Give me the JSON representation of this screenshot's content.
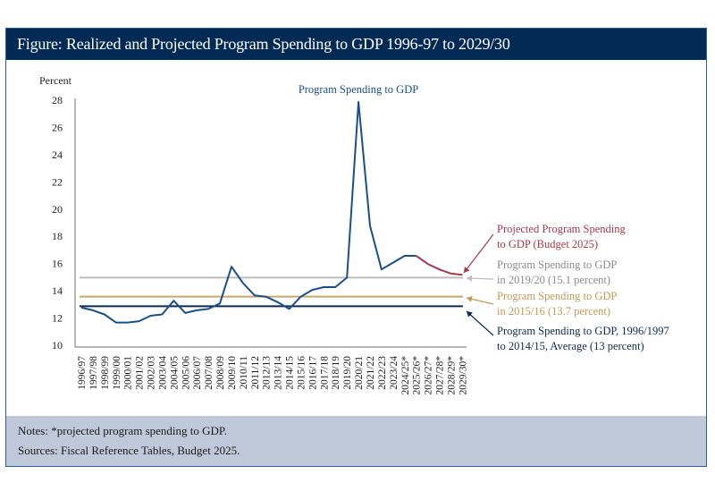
{
  "header": {
    "title": "Figure: Realized and Projected Program Spending to GDP 1996-97 to 2029/30"
  },
  "notes": {
    "note": "Notes: *projected program spending to GDP.",
    "source": "Sources: Fiscal Reference Tables, Budget 2025."
  },
  "colors": {
    "header_bg": "#032a54",
    "series_realized": "#1a4f8a",
    "series_projected": "#a33a4a",
    "ref_2019": "#bdbdbd",
    "ref_2015": "#c9a96a",
    "ref_avg": "#0d2a4f",
    "notes_bg": "#bfc9da"
  },
  "chart_data": {
    "type": "line",
    "title": "Program Spending to GDP",
    "ylabel": "Percent",
    "xlabel": "",
    "ylim": [
      10,
      28
    ],
    "yticks": [
      10,
      12,
      14,
      16,
      18,
      20,
      22,
      24,
      26,
      28
    ],
    "grid": false,
    "categories": [
      "1996/97",
      "1997/98",
      "1998/99",
      "1999/00",
      "2000/01",
      "2001/02",
      "2002/03",
      "2003/04",
      "2004/05",
      "2005/06",
      "2006/07",
      "2007/08",
      "2008/09",
      "2009/10",
      "2010/11",
      "2011/12",
      "2012/13",
      "2013/14",
      "2014/15",
      "2015/16",
      "2016/17",
      "2017/18",
      "2018/19",
      "2019/20",
      "2020/21",
      "2021/22",
      "2022/23",
      "2023/24",
      "2024/25*",
      "2025/26*",
      "2026/27*",
      "2027/28*",
      "2028/29*",
      "2029/30*"
    ],
    "series": [
      {
        "name": "Program Spending to GDP",
        "color": "#1a4f8a",
        "values": [
          12.9,
          12.7,
          12.4,
          11.8,
          11.8,
          11.9,
          12.3,
          12.4,
          13.4,
          12.5,
          12.7,
          12.8,
          13.2,
          15.9,
          14.7,
          13.8,
          13.7,
          13.3,
          12.8,
          13.7,
          14.2,
          14.4,
          14.4,
          15.1,
          28.0,
          18.9,
          15.7,
          16.2,
          16.7,
          16.7,
          null,
          null,
          null,
          null
        ]
      },
      {
        "name": "Projected Program Spending to GDP (Budget 2025)",
        "color": "#a33a4a",
        "values": [
          null,
          null,
          null,
          null,
          null,
          null,
          null,
          null,
          null,
          null,
          null,
          null,
          null,
          null,
          null,
          null,
          null,
          null,
          null,
          null,
          null,
          null,
          null,
          null,
          null,
          null,
          null,
          null,
          null,
          16.7,
          16.1,
          15.7,
          15.4,
          15.3
        ]
      }
    ],
    "reference_lines": [
      {
        "name": "Program Spending to GDP in 2019/20 (15.1 percent)",
        "value": 15.1,
        "color": "#bdbdbd"
      },
      {
        "name": "Program Spending to GDP in 2015/16 (13.7 percent)",
        "value": 13.7,
        "color": "#c9a96a"
      },
      {
        "name": "Program Spending to GDP, 1996/1997 to 2014/15, Average (13 percent)",
        "value": 13.0,
        "color": "#0d2a4f"
      }
    ],
    "annotations": [
      {
        "lines": [
          "Projected Program Spending",
          "to GDP (Budget 2025)"
        ],
        "color": "#a33a4a"
      },
      {
        "lines": [
          "Program Spending to GDP",
          "in 2019/20 (15.1 percent)"
        ],
        "color": "#8a8a8a"
      },
      {
        "lines": [
          "Program Spending to GDP",
          "in 2015/16 (13.7 percent)"
        ],
        "color": "#c09a55"
      },
      {
        "lines": [
          "Program Spending to GDP, 1996/1997",
          "to 2014/15, Average (13 percent)"
        ],
        "color": "#0d2a4f"
      }
    ]
  }
}
